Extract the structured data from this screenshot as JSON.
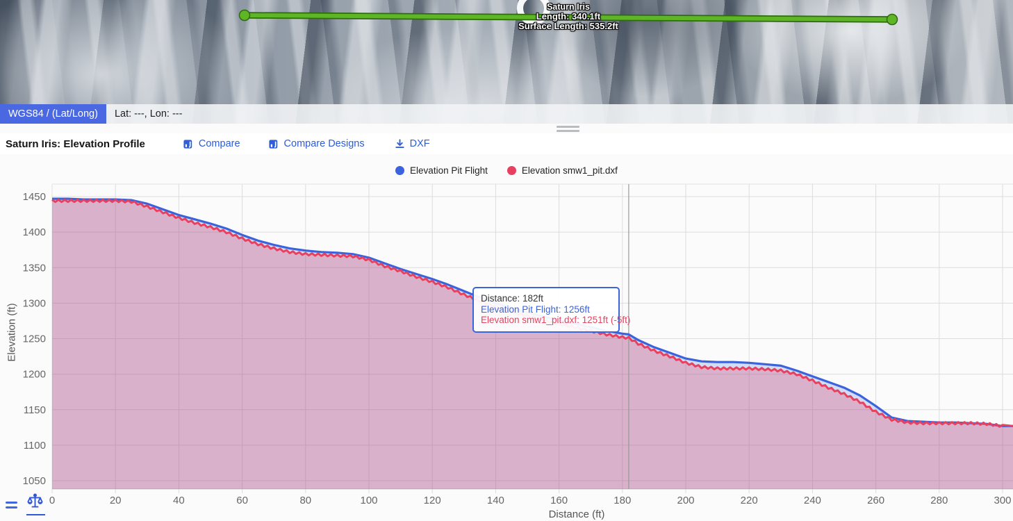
{
  "map": {
    "measurement_label": {
      "title": "Saturn Iris",
      "length": "Length: 340.1ft",
      "surface_length": "Surface Length: 535.2ft"
    },
    "coord_bar": {
      "datum": "WGS84 / (Lat/Long)",
      "position": "Lat: ---, Lon: ---"
    },
    "measurement_line_color": "#5eb626"
  },
  "toolbar": {
    "title": "Saturn Iris: Elevation Profile",
    "compare_label": "Compare",
    "compare_designs_label": "Compare Designs",
    "dxf_label": "DXF"
  },
  "tooltip": {
    "distance": "Distance: 182ft",
    "flight": "Elevation Pit Flight: 1256ft",
    "design": "Elevation smw1_pit.dxf: 1251ft (-5ft)"
  },
  "icons": {
    "compare": "compare-chart-icon",
    "dxf": "download-icon",
    "footer_left": "menu-icon",
    "footer_right": "volume-balance-icon"
  },
  "colors": {
    "accent_blue": "#2b5bd8",
    "chip_blue": "#4a68e1",
    "series_flight": "#3a63dc",
    "series_design": "#e8415f",
    "flight_fill": "rgba(61,102,221,0.21)",
    "design_fill": "rgba(233,64,94,0.27)",
    "grid": "#dcdcdc",
    "crosshair": "#999999"
  },
  "chart_data": {
    "type": "line",
    "title": "",
    "xlabel": "Distance (ft)",
    "ylabel": "Elevation (ft)",
    "xlim": [
      0,
      300
    ],
    "ylim": [
      1050,
      1450
    ],
    "x_ticks": [
      0,
      20,
      40,
      60,
      80,
      100,
      120,
      140,
      160,
      180,
      200,
      220,
      240,
      260,
      280,
      300
    ],
    "y_ticks": [
      1050,
      1100,
      1150,
      1200,
      1250,
      1300,
      1350,
      1400,
      1450
    ],
    "grid": true,
    "legend_position": "top",
    "crosshair_x": 182,
    "x": [
      0,
      5,
      10,
      15,
      20,
      25,
      30,
      35,
      40,
      45,
      50,
      55,
      60,
      65,
      70,
      75,
      80,
      85,
      90,
      95,
      100,
      105,
      110,
      115,
      120,
      125,
      130,
      135,
      140,
      145,
      150,
      155,
      160,
      165,
      170,
      175,
      180,
      182,
      185,
      190,
      195,
      200,
      205,
      210,
      215,
      220,
      225,
      230,
      235,
      240,
      245,
      250,
      255,
      260,
      265,
      270,
      275,
      280,
      285,
      290,
      295,
      300
    ],
    "series": [
      {
        "name": "Elevation Pit Flight",
        "color": "#3a63dc",
        "style": "smooth",
        "values": [
          1447,
          1447,
          1446,
          1446,
          1446,
          1445,
          1440,
          1432,
          1424,
          1418,
          1412,
          1405,
          1396,
          1388,
          1382,
          1377,
          1374,
          1372,
          1371,
          1369,
          1364,
          1356,
          1348,
          1341,
          1334,
          1326,
          1317,
          1308,
          1300,
          1293,
          1287,
          1281,
          1276,
          1271,
          1266,
          1261,
          1257,
          1256,
          1248,
          1238,
          1230,
          1222,
          1218,
          1217,
          1217,
          1216,
          1214,
          1212,
          1205,
          1197,
          1189,
          1181,
          1170,
          1155,
          1139,
          1134,
          1133,
          1132,
          1132,
          1131,
          1130,
          1127
        ]
      },
      {
        "name": "Elevation smw1_pit.dxf",
        "color": "#e8415f",
        "style": "jagged",
        "values": [
          1444,
          1444,
          1444,
          1444,
          1444,
          1443,
          1436,
          1428,
          1420,
          1413,
          1407,
          1400,
          1391,
          1383,
          1377,
          1372,
          1369,
          1368,
          1367,
          1366,
          1361,
          1352,
          1345,
          1337,
          1330,
          1322,
          1312,
          1303,
          1295,
          1288,
          1282,
          1276,
          1271,
          1266,
          1261,
          1256,
          1252,
          1251,
          1243,
          1233,
          1225,
          1216,
          1210,
          1208,
          1208,
          1208,
          1207,
          1205,
          1200,
          1191,
          1181,
          1172,
          1161,
          1147,
          1136,
          1132,
          1131,
          1131,
          1131,
          1131,
          1130,
          1127
        ]
      }
    ]
  }
}
